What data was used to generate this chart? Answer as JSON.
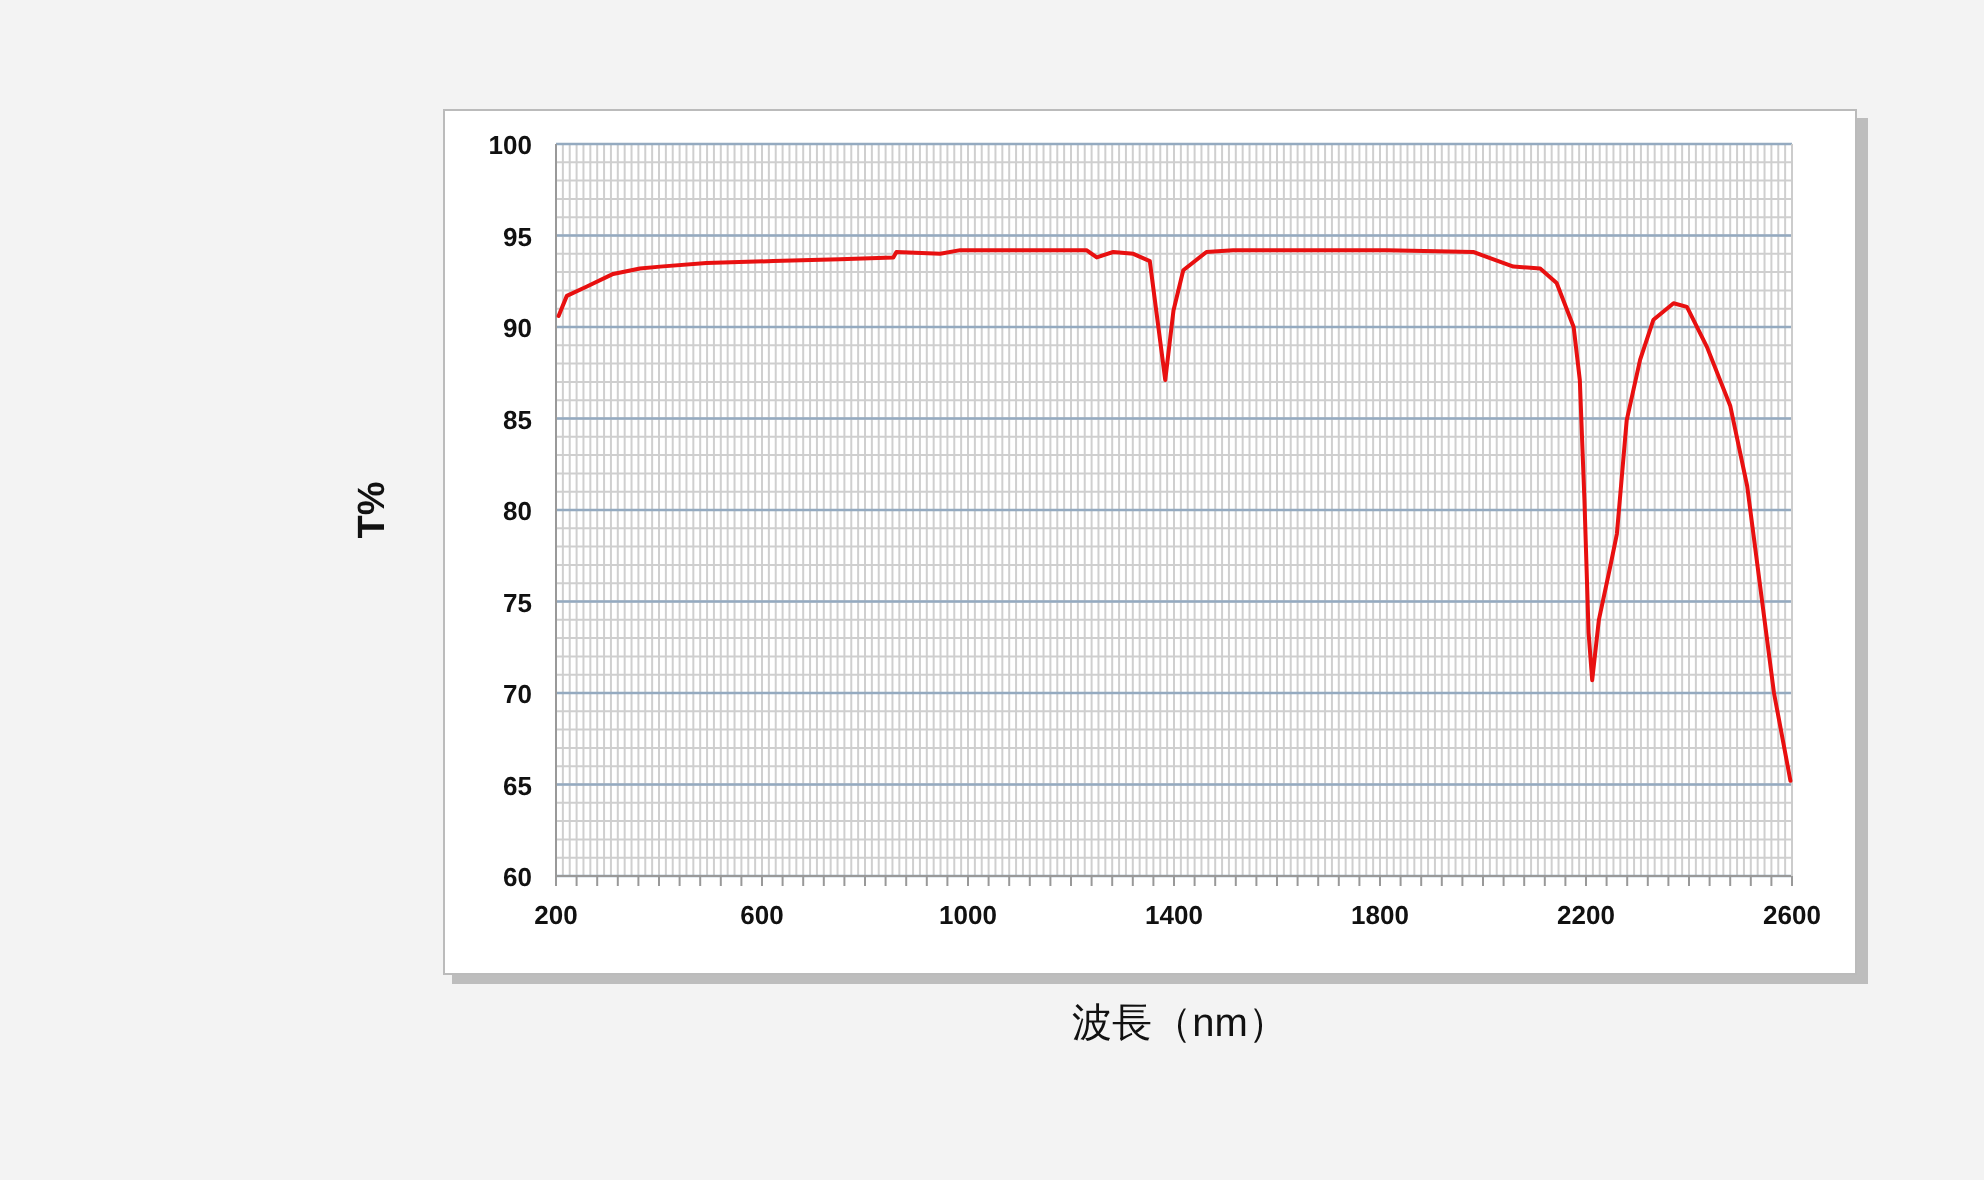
{
  "chart_data": {
    "type": "line",
    "xlabel": "波長（nm）",
    "ylabel": "T%",
    "xlim": [
      200,
      2600
    ],
    "xticks": [
      200,
      600,
      1000,
      1400,
      1800,
      2200,
      2600
    ],
    "ylim": [
      60,
      100
    ],
    "yticks": [
      60,
      65,
      70,
      75,
      80,
      85,
      90,
      95,
      100
    ],
    "grid": true,
    "marker": "none",
    "line_style": "solid",
    "series": [
      {
        "color": "#e81010",
        "x": [
          205,
          221,
          259,
          311,
          363,
          402,
          492,
          622,
          751,
          855,
          861,
          946,
          985,
          1230,
          1250,
          1282,
          1321,
          1353,
          1383,
          1399,
          1418,
          1463,
          1515,
          1813,
          1981,
          2059,
          2111,
          2143,
          2176,
          2188,
          2197,
          2205,
          2212,
          2225,
          2247,
          2260,
          2279,
          2305,
          2331,
          2370,
          2396,
          2435,
          2480,
          2513,
          2565,
          2597
        ],
        "values": [
          90.6,
          91.7,
          92.2,
          92.9,
          93.2,
          93.3,
          93.5,
          93.6,
          93.7,
          93.8,
          94.1,
          94.0,
          94.2,
          94.2,
          93.8,
          94.1,
          94.0,
          93.6,
          87.1,
          90.9,
          93.1,
          94.1,
          94.2,
          94.2,
          94.1,
          93.3,
          93.2,
          92.4,
          90.0,
          87.1,
          80.5,
          73.3,
          70.7,
          74.0,
          76.9,
          78.7,
          84.9,
          88.2,
          90.4,
          91.3,
          91.1,
          88.9,
          85.7,
          81.3,
          70.0,
          65.2
        ]
      }
    ]
  }
}
